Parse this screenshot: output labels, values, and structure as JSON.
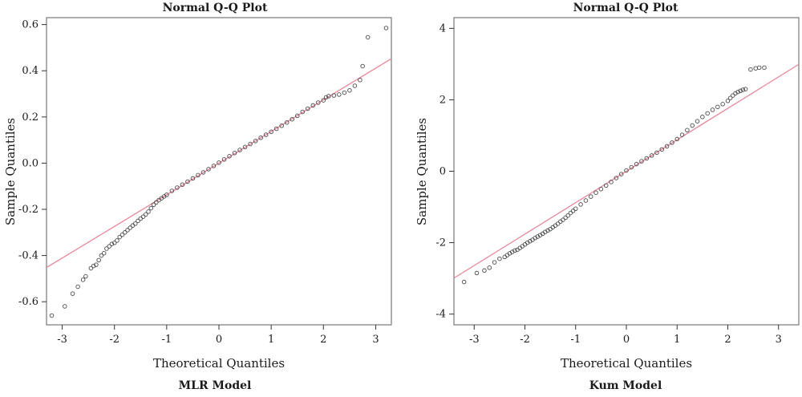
{
  "chart_data": [
    {
      "type": "scatter",
      "title": "Normal Q-Q Plot",
      "caption": "MLR Model",
      "xlabel": "Theoretical Quantiles",
      "ylabel": "Sample Quantiles",
      "xlim": [
        -3.3,
        3.3
      ],
      "ylim": [
        -0.7,
        0.63
      ],
      "xticks": [
        -3,
        -2,
        -1,
        0,
        1,
        2,
        3
      ],
      "yticks": [
        -0.6,
        -0.4,
        -0.2,
        0.0,
        0.2,
        0.4,
        0.6
      ],
      "ytick_labels": [
        "-0.6",
        "-0.4",
        "-0.2",
        "0.0",
        "0.2",
        "0.4",
        "0.6"
      ],
      "reference_line": {
        "slope": 0.137,
        "intercept": 0.0,
        "color": "#e8879a"
      },
      "point_color": "#4a4a4a",
      "points": [
        [
          -3.2,
          -0.66
        ],
        [
          -2.95,
          -0.62
        ],
        [
          -2.8,
          -0.565
        ],
        [
          -2.7,
          -0.535
        ],
        [
          -2.6,
          -0.505
        ],
        [
          -2.55,
          -0.49
        ],
        [
          -2.45,
          -0.455
        ],
        [
          -2.4,
          -0.445
        ],
        [
          -2.35,
          -0.44
        ],
        [
          -2.3,
          -0.42
        ],
        [
          -2.25,
          -0.4
        ],
        [
          -2.2,
          -0.39
        ],
        [
          -2.15,
          -0.37
        ],
        [
          -2.1,
          -0.36
        ],
        [
          -2.05,
          -0.35
        ],
        [
          -2.0,
          -0.345
        ],
        [
          -1.95,
          -0.335
        ],
        [
          -1.9,
          -0.32
        ],
        [
          -1.85,
          -0.31
        ],
        [
          -1.8,
          -0.3
        ],
        [
          -1.75,
          -0.29
        ],
        [
          -1.7,
          -0.28
        ],
        [
          -1.65,
          -0.27
        ],
        [
          -1.6,
          -0.262
        ],
        [
          -1.55,
          -0.25
        ],
        [
          -1.5,
          -0.24
        ],
        [
          -1.45,
          -0.232
        ],
        [
          -1.4,
          -0.222
        ],
        [
          -1.35,
          -0.21
        ],
        [
          -1.3,
          -0.195
        ],
        [
          -1.25,
          -0.18
        ],
        [
          -1.2,
          -0.17
        ],
        [
          -1.15,
          -0.16
        ],
        [
          -1.1,
          -0.152
        ],
        [
          -1.05,
          -0.144
        ],
        [
          -1.0,
          -0.137
        ],
        [
          -0.9,
          -0.12
        ],
        [
          -0.8,
          -0.106
        ],
        [
          -0.7,
          -0.093
        ],
        [
          -0.6,
          -0.08
        ],
        [
          -0.5,
          -0.066
        ],
        [
          -0.4,
          -0.052
        ],
        [
          -0.3,
          -0.04
        ],
        [
          -0.2,
          -0.026
        ],
        [
          -0.1,
          -0.012
        ],
        [
          0.0,
          0.002
        ],
        [
          0.1,
          0.016
        ],
        [
          0.2,
          0.03
        ],
        [
          0.3,
          0.044
        ],
        [
          0.4,
          0.057
        ],
        [
          0.5,
          0.07
        ],
        [
          0.6,
          0.083
        ],
        [
          0.7,
          0.096
        ],
        [
          0.8,
          0.11
        ],
        [
          0.9,
          0.123
        ],
        [
          1.0,
          0.136
        ],
        [
          1.1,
          0.149
        ],
        [
          1.2,
          0.162
        ],
        [
          1.3,
          0.176
        ],
        [
          1.4,
          0.19
        ],
        [
          1.5,
          0.205
        ],
        [
          1.6,
          0.222
        ],
        [
          1.7,
          0.236
        ],
        [
          1.8,
          0.25
        ],
        [
          1.9,
          0.262
        ],
        [
          2.0,
          0.272
        ],
        [
          2.05,
          0.285
        ],
        [
          2.1,
          0.29
        ],
        [
          2.2,
          0.293
        ],
        [
          2.3,
          0.297
        ],
        [
          2.4,
          0.305
        ],
        [
          2.5,
          0.315
        ],
        [
          2.6,
          0.335
        ],
        [
          2.7,
          0.36
        ],
        [
          2.75,
          0.42
        ],
        [
          2.85,
          0.545
        ],
        [
          3.2,
          0.585
        ]
      ]
    },
    {
      "type": "scatter",
      "title": "Normal Q-Q Plot",
      "caption": "Kum Model",
      "xlabel": "Theoretical Quantiles",
      "ylabel": "Sample Quantiles",
      "xlim": [
        -3.4,
        3.4
      ],
      "ylim": [
        -4.3,
        4.3
      ],
      "xticks": [
        -3,
        -2,
        -1,
        0,
        1,
        2,
        3
      ],
      "yticks": [
        -4,
        -2,
        0,
        2,
        4
      ],
      "ytick_labels": [
        "-4",
        "-2",
        "0",
        "2",
        "4"
      ],
      "reference_line": {
        "slope": 0.88,
        "intercept": 0.0,
        "color": "#e8879a"
      },
      "point_color": "#4a4a4a",
      "points": [
        [
          -3.2,
          -3.1
        ],
        [
          -2.95,
          -2.85
        ],
        [
          -2.8,
          -2.78
        ],
        [
          -2.7,
          -2.7
        ],
        [
          -2.6,
          -2.55
        ],
        [
          -2.5,
          -2.45
        ],
        [
          -2.4,
          -2.4
        ],
        [
          -2.35,
          -2.35
        ],
        [
          -2.3,
          -2.3
        ],
        [
          -2.25,
          -2.26
        ],
        [
          -2.2,
          -2.22
        ],
        [
          -2.15,
          -2.2
        ],
        [
          -2.1,
          -2.15
        ],
        [
          -2.05,
          -2.1
        ],
        [
          -2.0,
          -2.05
        ],
        [
          -1.95,
          -2.0
        ],
        [
          -1.9,
          -1.96
        ],
        [
          -1.85,
          -1.92
        ],
        [
          -1.8,
          -1.87
        ],
        [
          -1.75,
          -1.83
        ],
        [
          -1.7,
          -1.79
        ],
        [
          -1.65,
          -1.75
        ],
        [
          -1.6,
          -1.7
        ],
        [
          -1.55,
          -1.66
        ],
        [
          -1.5,
          -1.62
        ],
        [
          -1.45,
          -1.57
        ],
        [
          -1.4,
          -1.52
        ],
        [
          -1.35,
          -1.47
        ],
        [
          -1.3,
          -1.41
        ],
        [
          -1.25,
          -1.36
        ],
        [
          -1.2,
          -1.3
        ],
        [
          -1.15,
          -1.24
        ],
        [
          -1.1,
          -1.17
        ],
        [
          -1.05,
          -1.11
        ],
        [
          -1.0,
          -1.05
        ],
        [
          -0.9,
          -0.93
        ],
        [
          -0.8,
          -0.82
        ],
        [
          -0.7,
          -0.71
        ],
        [
          -0.6,
          -0.6
        ],
        [
          -0.5,
          -0.5
        ],
        [
          -0.4,
          -0.4
        ],
        [
          -0.3,
          -0.3
        ],
        [
          -0.2,
          -0.19
        ],
        [
          -0.1,
          -0.08
        ],
        [
          0.0,
          0.02
        ],
        [
          0.1,
          0.11
        ],
        [
          0.2,
          0.2
        ],
        [
          0.3,
          0.28
        ],
        [
          0.4,
          0.36
        ],
        [
          0.5,
          0.44
        ],
        [
          0.6,
          0.52
        ],
        [
          0.7,
          0.61
        ],
        [
          0.8,
          0.7
        ],
        [
          0.9,
          0.8
        ],
        [
          1.0,
          0.9
        ],
        [
          1.1,
          1.02
        ],
        [
          1.2,
          1.15
        ],
        [
          1.3,
          1.28
        ],
        [
          1.4,
          1.4
        ],
        [
          1.5,
          1.52
        ],
        [
          1.6,
          1.62
        ],
        [
          1.7,
          1.72
        ],
        [
          1.8,
          1.8
        ],
        [
          1.9,
          1.88
        ],
        [
          2.0,
          1.97
        ],
        [
          2.05,
          2.05
        ],
        [
          2.1,
          2.12
        ],
        [
          2.15,
          2.18
        ],
        [
          2.2,
          2.22
        ],
        [
          2.25,
          2.25
        ],
        [
          2.3,
          2.28
        ],
        [
          2.35,
          2.3
        ],
        [
          2.45,
          2.85
        ],
        [
          2.55,
          2.88
        ],
        [
          2.62,
          2.9
        ],
        [
          2.72,
          2.9
        ]
      ]
    }
  ]
}
